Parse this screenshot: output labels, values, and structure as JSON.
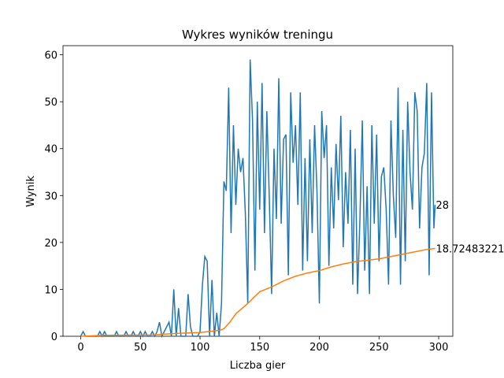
{
  "chart_data": {
    "type": "line",
    "title": "Wykres wyników treningu",
    "x_label": "Liczba gier",
    "y_label": "Wynik",
    "series": [
      {
        "color": "#1f77b4",
        "x": [
          0,
          2,
          4,
          6,
          8,
          10,
          12,
          14,
          16,
          18,
          20,
          22,
          24,
          26,
          28,
          30,
          32,
          34,
          36,
          38,
          40,
          42,
          44,
          46,
          48,
          50,
          52,
          54,
          56,
          58,
          60,
          62,
          64,
          66,
          68,
          70,
          72,
          74,
          76,
          78,
          80,
          82,
          84,
          86,
          88,
          90,
          92,
          94,
          96,
          98,
          100,
          102,
          104,
          106,
          108,
          110,
          112,
          114,
          116,
          118,
          120,
          122,
          124,
          126,
          128,
          130,
          132,
          134,
          136,
          138,
          140,
          142,
          144,
          146,
          148,
          150,
          152,
          154,
          156,
          158,
          160,
          162,
          164,
          166,
          168,
          170,
          172,
          174,
          176,
          178,
          180,
          182,
          184,
          186,
          188,
          190,
          192,
          194,
          196,
          198,
          200,
          202,
          204,
          206,
          208,
          210,
          212,
          214,
          216,
          218,
          220,
          222,
          224,
          226,
          228,
          230,
          232,
          234,
          236,
          238,
          240,
          242,
          244,
          246,
          248,
          250,
          252,
          254,
          256,
          258,
          260,
          262,
          264,
          266,
          268,
          270,
          272,
          274,
          276,
          278,
          280,
          282,
          284,
          286,
          288,
          290,
          292,
          294,
          296,
          297
        ],
        "values": [
          0,
          1,
          0,
          0,
          0,
          0,
          0,
          0,
          1,
          0,
          1,
          0,
          0,
          0,
          0,
          1,
          0,
          0,
          0,
          1,
          0,
          0,
          1,
          0,
          0,
          1,
          0,
          1,
          0,
          0,
          1,
          0,
          1,
          3,
          0,
          1,
          2,
          3,
          0,
          10,
          0,
          6,
          0,
          0,
          0,
          9,
          2,
          0,
          0,
          0,
          1,
          11,
          17,
          16,
          0,
          12,
          0,
          5,
          0,
          7,
          33,
          31,
          53,
          22,
          45,
          28,
          40,
          35,
          38,
          26,
          7,
          59,
          46,
          14,
          50,
          27,
          54,
          22,
          48,
          30,
          9,
          40,
          25,
          55,
          24,
          42,
          43,
          13,
          52,
          37,
          45,
          28,
          52,
          14,
          38,
          16,
          42,
          22,
          45,
          31,
          7,
          48,
          38,
          45,
          15,
          36,
          23,
          41,
          29,
          47,
          19,
          35,
          24,
          44,
          11,
          40,
          9,
          25,
          46,
          14,
          32,
          9,
          45,
          24,
          43,
          16,
          34,
          36,
          27,
          11,
          46,
          30,
          21,
          53,
          11,
          44,
          16,
          50,
          35,
          27,
          52,
          48,
          23,
          36,
          39,
          54,
          13,
          52,
          23,
          28
        ]
      },
      {
        "color": "#ff7f0e",
        "x": [
          0,
          20,
          40,
          60,
          80,
          100,
          110,
          117,
          120,
          125,
          130,
          140,
          150,
          160,
          170,
          180,
          190,
          200,
          210,
          220,
          230,
          240,
          250,
          260,
          270,
          280,
          290,
          297
        ],
        "values": [
          0,
          0.2,
          0.25,
          0.3,
          0.6,
          0.8,
          1.1,
          1.3,
          1.6,
          3,
          4.8,
          7,
          9.5,
          10.5,
          11.8,
          12.8,
          13.5,
          14,
          14.8,
          15.4,
          15.9,
          16.2,
          16.5,
          17,
          17.5,
          18,
          18.5,
          18.72483221
        ]
      }
    ],
    "annotations": [
      "28",
      "18.72483221"
    ],
    "xlim": [
      -14.85,
      311.85
    ],
    "xticks": [
      0,
      50,
      100,
      150,
      200,
      250,
      300
    ],
    "ylim": [
      0,
      61.95
    ],
    "yticks": [
      0,
      10,
      20,
      30,
      40,
      50,
      60
    ]
  }
}
